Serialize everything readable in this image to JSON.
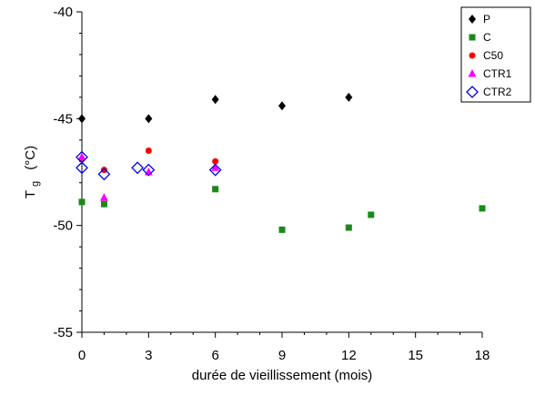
{
  "chart_data": {
    "type": "scatter",
    "title": "",
    "xlabel": "durée de vieillissement (mois)",
    "ylabel": {
      "main": "T",
      "sub": "g",
      "unit": "(°C)"
    },
    "xlim": [
      0,
      18
    ],
    "ylim": [
      -55,
      -40
    ],
    "xticks": [
      "0",
      "3",
      "6",
      "9",
      "12",
      "15",
      "18"
    ],
    "yticks": [
      "-40",
      "-45",
      "-50",
      "-55"
    ],
    "grid": false,
    "legend_position": "top-right",
    "series": [
      {
        "name": "P",
        "marker": "diamond-filled",
        "color": "#000000",
        "x": [
          0,
          3,
          6,
          9,
          12
        ],
        "y": [
          -45.0,
          -45.0,
          -44.1,
          -44.4,
          -44.0
        ]
      },
      {
        "name": "C",
        "marker": "square-filled",
        "color": "#1a8a1a",
        "x": [
          0,
          1,
          6,
          9,
          12,
          13,
          18
        ],
        "y": [
          -48.9,
          -49.0,
          -48.3,
          -50.2,
          -50.1,
          -49.5,
          -49.2
        ]
      },
      {
        "name": "C50",
        "marker": "circle-filled",
        "color": "#ff0000",
        "x": [
          0,
          1,
          3,
          6
        ],
        "y": [
          -46.9,
          -47.4,
          -46.5,
          -47.0
        ]
      },
      {
        "name": "CTR1",
        "marker": "triangle-filled",
        "color": "#ff00ff",
        "x": [
          0,
          1,
          3,
          6
        ],
        "y": [
          -46.8,
          -48.7,
          -47.5,
          -47.3
        ]
      },
      {
        "name": "CTR2",
        "marker": "diamond-open",
        "color": "#0000ee",
        "x": [
          0,
          0,
          1,
          2.5,
          3,
          6
        ],
        "y": [
          -46.8,
          -47.3,
          -47.6,
          -47.3,
          -47.4,
          -47.4
        ]
      }
    ]
  }
}
